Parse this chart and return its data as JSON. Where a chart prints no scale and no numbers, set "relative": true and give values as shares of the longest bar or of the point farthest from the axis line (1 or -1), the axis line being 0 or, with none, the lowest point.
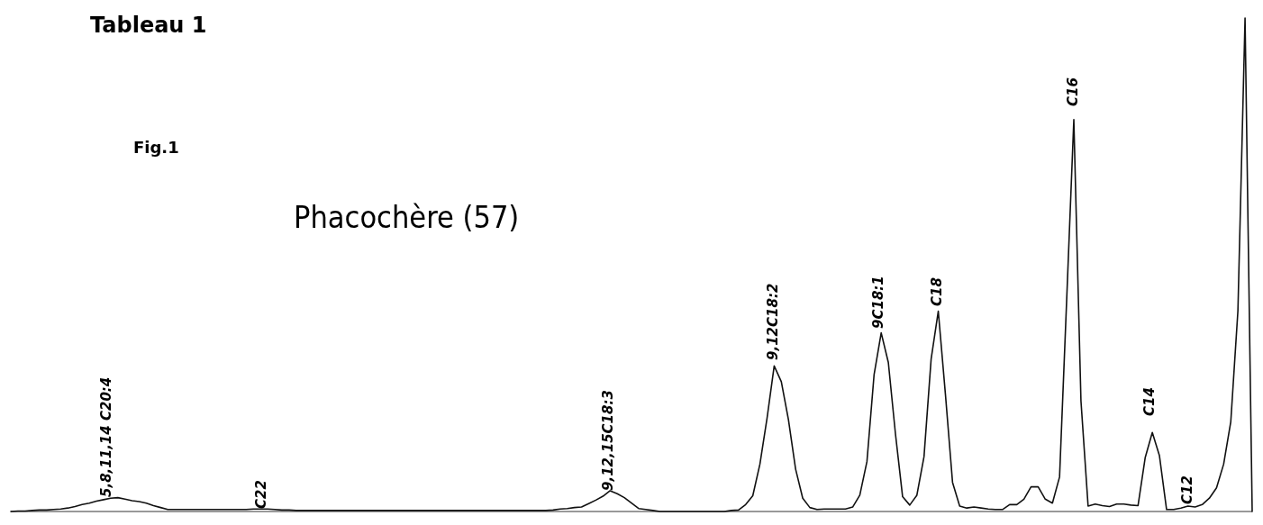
{
  "chart_data": {
    "type": "line",
    "title": "Tableau 1",
    "subtitle": "Fig.1",
    "relative": true,
    "categories": [
      null,
      null,
      null,
      null,
      null,
      null,
      null,
      null,
      null,
      null,
      null,
      null,
      null,
      null,
      null,
      null,
      null,
      null,
      null,
      null,
      null,
      null,
      null,
      null,
      null,
      null,
      null,
      null,
      null,
      null,
      null,
      null,
      null,
      null,
      null,
      null,
      null,
      null,
      null,
      null,
      null,
      null,
      null,
      null,
      null,
      null,
      null,
      null,
      null,
      null,
      null,
      null,
      null,
      null,
      null,
      null,
      null,
      null,
      null,
      null,
      null,
      null,
      null,
      null,
      null,
      null,
      null,
      null,
      null,
      null,
      null,
      null,
      null,
      null,
      null,
      null,
      null,
      null,
      null,
      null,
      null,
      null,
      null,
      null,
      null,
      null,
      null,
      null,
      null,
      null,
      null,
      null,
      null,
      null,
      null,
      null,
      null,
      null,
      null,
      null,
      null,
      null,
      null,
      null,
      null,
      null,
      null,
      null,
      null,
      null,
      null,
      null,
      null,
      null,
      null,
      null,
      null,
      null,
      null,
      null,
      null,
      null,
      null,
      null,
      null,
      null,
      null,
      null,
      null,
      null,
      null,
      null,
      null,
      null,
      null,
      null,
      null,
      null,
      null,
      null,
      null,
      null,
      null,
      null,
      null,
      null,
      null,
      null,
      null,
      null,
      null,
      null,
      null,
      null,
      null,
      null,
      null,
      null,
      null,
      null,
      null,
      null,
      null,
      null,
      null,
      null,
      null,
      null,
      null,
      null,
      null,
      null,
      null,
      null,
      null
    ],
    "series": [
      {
        "color": "#111111",
        "values": [
          0,
          0.001,
          0.001,
          0.002,
          0.003,
          0.003,
          0.004,
          0.005,
          0.007,
          0.01,
          0.014,
          0.017,
          0.021,
          0.024,
          0.027,
          0.028,
          0.025,
          0.022,
          0.02,
          0.017,
          0.012,
          0.008,
          0.004,
          0.004,
          0.004,
          0.004,
          0.004,
          0.004,
          0.004,
          0.004,
          0.004,
          0.004,
          0.004,
          0.004,
          0.005,
          0.005,
          0.005,
          0.004,
          0.003,
          0.003,
          0.002,
          0.002,
          0.002,
          0.002,
          0.002,
          0.002,
          0.002,
          0.002,
          0.002,
          0.002,
          0.002,
          0.002,
          0.002,
          0.002,
          0.002,
          0.002,
          0.002,
          0.002,
          0.002,
          0.002,
          0.002,
          0.002,
          0.002,
          0.002,
          0.002,
          0.002,
          0.002,
          0.002,
          0.002,
          0.002,
          0.002,
          0.002,
          0.002,
          0.002,
          0.002,
          0.002,
          0.003,
          0.005,
          0.006,
          0.008,
          0.009,
          0.016,
          0.023,
          0.031,
          0.042,
          0.036,
          0.028,
          0.017,
          0.006,
          0.004,
          0.002,
          0,
          0,
          0,
          0,
          0,
          0,
          0,
          0,
          0,
          0,
          0.002,
          0.003,
          0.014,
          0.032,
          0.096,
          0.189,
          0.295,
          0.263,
          0.186,
          0.086,
          0.027,
          0.008,
          0.004,
          0.005,
          0.005,
          0.005,
          0.005,
          0.009,
          0.033,
          0.101,
          0.277,
          0.362,
          0.302,
          0.157,
          0.03,
          0.013,
          0.033,
          0.111,
          0.309,
          0.406,
          0.238,
          0.059,
          0.011,
          0.007,
          0.009,
          0.007,
          0.005,
          0.004,
          0.004,
          0.014,
          0.014,
          0.025,
          0.05,
          0.05,
          0.025,
          0.017,
          0.07,
          0.43,
          0.794,
          0.224,
          0.011,
          0.015,
          0.012,
          0.01,
          0.015,
          0.015,
          0.013,
          0.012,
          0.109,
          0.16,
          0.113,
          0.004,
          0.004,
          0.007,
          0.011,
          0.009,
          0.014,
          0.027,
          0.048,
          0.096,
          0.182,
          0.407,
          1,
          0
        ]
      }
    ],
    "annotations": [
      "Phacochère (57)",
      "5,8,11,14 C20:4",
      "C22",
      "9,12,15C18:3",
      "9,12C18:2",
      "9C18:1",
      "C18",
      "C16",
      "C14",
      "C12"
    ]
  }
}
